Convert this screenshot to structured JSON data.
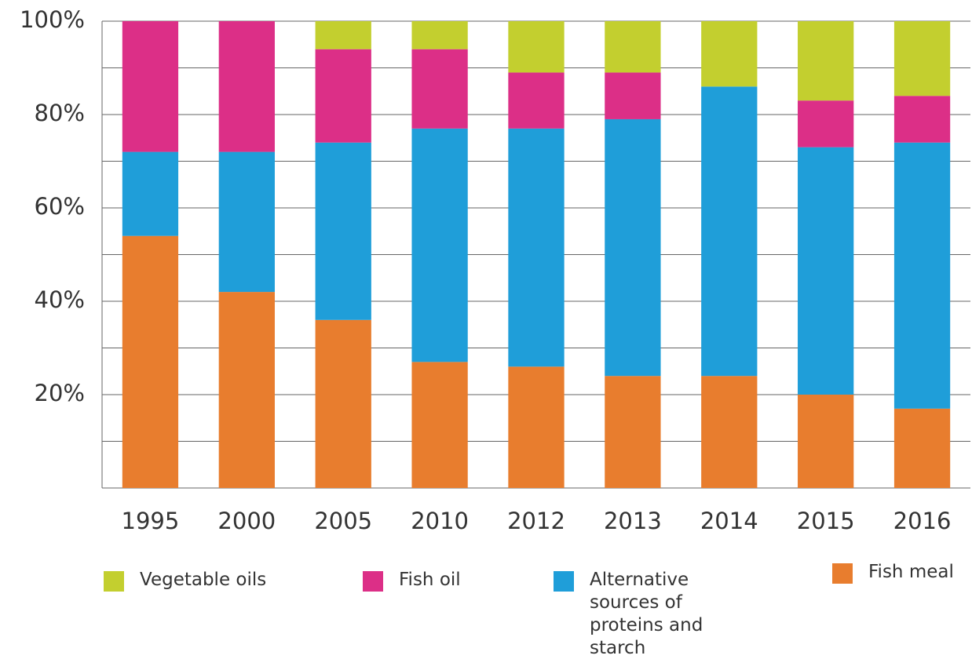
{
  "chart_data": {
    "type": "stacked_bar",
    "categories": [
      "1995",
      "2000",
      "2005",
      "2010",
      "2012",
      "2013",
      "2014",
      "2015",
      "2016"
    ],
    "series": [
      {
        "name": "Vegetable oils",
        "color": "#c3cf2f",
        "values": [
          0,
          0,
          6,
          6,
          11,
          11,
          14,
          17,
          16
        ]
      },
      {
        "name": "Fish oil",
        "color": "#dc2f87",
        "values": [
          28,
          28,
          20,
          17,
          12,
          10,
          0,
          10,
          10
        ]
      },
      {
        "name": "Alternative sources of proteins and starch",
        "color": "#1f9ed9",
        "values": [
          18,
          30,
          38,
          50,
          51,
          55,
          62,
          53,
          57
        ]
      },
      {
        "name": "Fish meal",
        "color": "#e87d2e",
        "values": [
          54,
          42,
          36,
          27,
          26,
          24,
          24,
          20,
          17
        ]
      }
    ],
    "ylim": [
      0,
      100
    ],
    "yticks": [
      {
        "value": 20,
        "label": "20%"
      },
      {
        "value": 40,
        "label": "40%"
      },
      {
        "value": 60,
        "label": "60%"
      },
      {
        "value": 80,
        "label": "80%"
      },
      {
        "value": 100,
        "label": "100%"
      }
    ],
    "minor_yticks": [
      10,
      30,
      50,
      70,
      90
    ],
    "grid": true,
    "legend": "bottom"
  }
}
